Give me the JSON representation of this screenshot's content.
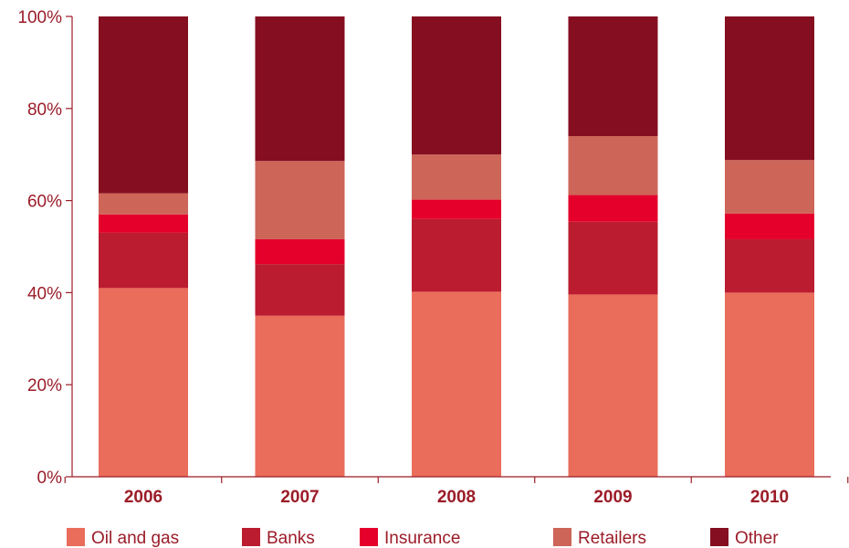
{
  "chart_data": {
    "type": "bar",
    "stacked": true,
    "categories": [
      "2006",
      "2007",
      "2008",
      "2009",
      "2010"
    ],
    "series": [
      {
        "name": "Oil and gas",
        "color": "#ea6c5a",
        "values": [
          41.0,
          35.0,
          40.2,
          39.6,
          40.0
        ]
      },
      {
        "name": "Banks",
        "color": "#bb1c30",
        "values": [
          12.0,
          11.2,
          15.8,
          15.8,
          11.6
        ]
      },
      {
        "name": "Insurance",
        "color": "#e4002b",
        "values": [
          4.0,
          5.4,
          4.2,
          5.8,
          5.6
        ]
      },
      {
        "name": "Retailers",
        "color": "#cd6558",
        "values": [
          4.6,
          17.0,
          9.8,
          12.8,
          11.6
        ]
      },
      {
        "name": "Other",
        "color": "#850e20",
        "values": [
          38.4,
          31.4,
          30.0,
          26.0,
          31.2
        ]
      }
    ],
    "ylim": [
      0,
      100
    ],
    "yticks": [
      "0%",
      "20%",
      "40%",
      "60%",
      "80%",
      "100%"
    ],
    "ytick_values": [
      0,
      20,
      40,
      60,
      80,
      100
    ],
    "grid": false,
    "legend": "bottom",
    "axis_color": "#9b1c28"
  }
}
